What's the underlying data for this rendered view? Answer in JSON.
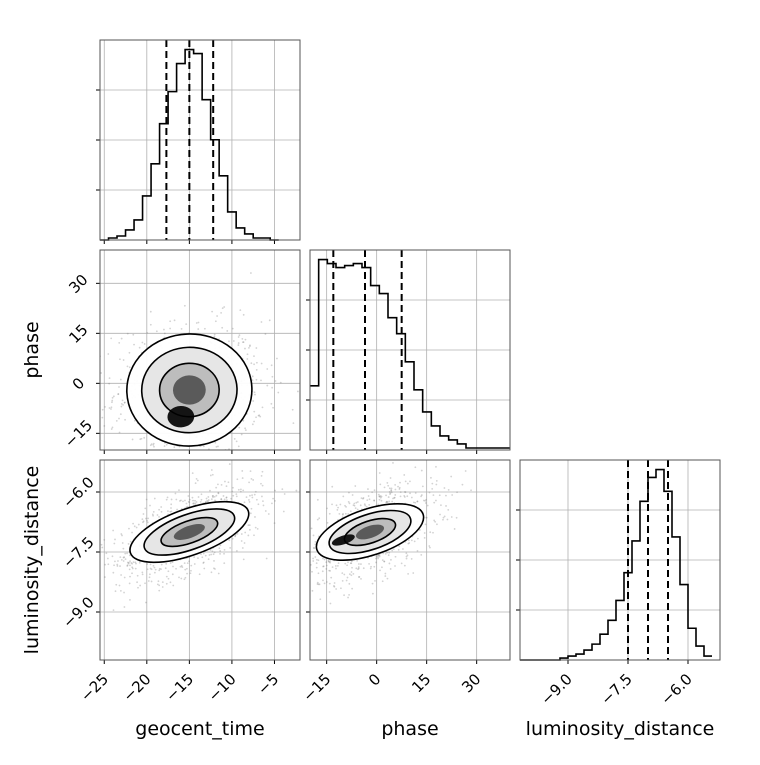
{
  "chart_data": {
    "type": "corner",
    "parameters": [
      "geocent_time",
      "phase",
      "luminosity_distance"
    ],
    "axes": {
      "geocent_time": {
        "range": [
          -25.5,
          -2
        ],
        "ticks": [
          -25,
          -20,
          -15,
          -10,
          -5
        ],
        "tick_labels": [
          "−25",
          "−20",
          "−15",
          "−10",
          "−5"
        ]
      },
      "phase": {
        "range": [
          -20,
          40
        ],
        "ticks": [
          -15,
          0,
          15,
          30
        ],
        "tick_labels": [
          "−15",
          "0",
          "15",
          "30"
        ]
      },
      "luminosity_distance": {
        "range": [
          -10.2,
          -5.2
        ],
        "ticks": [
          -9.0,
          -7.5,
          -6.0
        ],
        "tick_labels": [
          "−9.0",
          "−7.5",
          "−6.0"
        ]
      }
    },
    "quantiles": {
      "geocent_time": [
        -17.7,
        -15.0,
        -12.2
      ],
      "phase": [
        -13.0,
        -3.5,
        7.5
      ],
      "luminosity_distance": [
        -7.5,
        -7.0,
        -6.5
      ]
    },
    "histograms": {
      "geocent_time": {
        "bin_edges": [
          -25.5,
          -24.5,
          -23.5,
          -22.5,
          -21.5,
          -20.5,
          -19.5,
          -18.5,
          -17.5,
          -16.5,
          -15.5,
          -14.5,
          -13.5,
          -12.5,
          -11.5,
          -10.5,
          -9.5,
          -8.5,
          -7.5,
          -6.5,
          -5.5,
          -4.5
        ],
        "counts": [
          0.0,
          0.01,
          0.02,
          0.05,
          0.1,
          0.22,
          0.38,
          0.58,
          0.74,
          0.88,
          0.95,
          0.93,
          0.7,
          0.5,
          0.32,
          0.14,
          0.06,
          0.03,
          0.01,
          0.01,
          0.0
        ]
      },
      "phase": {
        "bin_edges": [
          -20,
          -17.4,
          -14.8,
          -12.2,
          -9.6,
          -7.0,
          -4.4,
          -1.8,
          0.8,
          3.4,
          6.0,
          8.6,
          11.2,
          13.8,
          16.4,
          19.0,
          21.6,
          24.2,
          26.8,
          29.4,
          32.0,
          40
        ],
        "counts": [
          0.32,
          0.95,
          0.93,
          0.91,
          0.92,
          0.93,
          0.91,
          0.82,
          0.78,
          0.66,
          0.58,
          0.44,
          0.3,
          0.19,
          0.12,
          0.07,
          0.05,
          0.03,
          0.01,
          0.01,
          0.01
        ]
      },
      "luminosity_distance": {
        "bin_edges": [
          -10.2,
          -10.0,
          -9.8,
          -9.6,
          -9.4,
          -9.2,
          -9.0,
          -8.8,
          -8.6,
          -8.4,
          -8.2,
          -8.0,
          -7.8,
          -7.6,
          -7.4,
          -7.2,
          -7.0,
          -6.8,
          -6.6,
          -6.4,
          -6.2,
          -6.0,
          -5.8,
          -5.6,
          -5.4
        ],
        "counts": [
          0.0,
          0.0,
          0.0,
          0.0,
          0.0,
          0.01,
          0.02,
          0.03,
          0.05,
          0.08,
          0.13,
          0.2,
          0.3,
          0.44,
          0.6,
          0.8,
          0.92,
          0.96,
          0.85,
          0.62,
          0.38,
          0.16,
          0.07,
          0.02
        ]
      }
    },
    "joint": {
      "phase_vs_geocent_time": {
        "mean": [
          -15,
          -2
        ],
        "std": [
          3.5,
          8
        ],
        "corr": 0.05,
        "peak": [
          -16,
          -10
        ]
      },
      "luminosity_distance_vs_geocent_time": {
        "mean": [
          -15,
          -7.0
        ],
        "std": [
          3.5,
          0.5
        ],
        "corr": 0.6
      },
      "luminosity_distance_vs_phase": {
        "mean": [
          -2,
          -7.0
        ],
        "std": [
          8,
          0.5
        ],
        "corr": 0.5,
        "peak": [
          -10,
          -7.2
        ]
      }
    },
    "grid": true,
    "colors": {
      "line": "#000000",
      "quantile_line": "#000000",
      "grid": "#b0b0b0",
      "points": "#808080"
    }
  }
}
